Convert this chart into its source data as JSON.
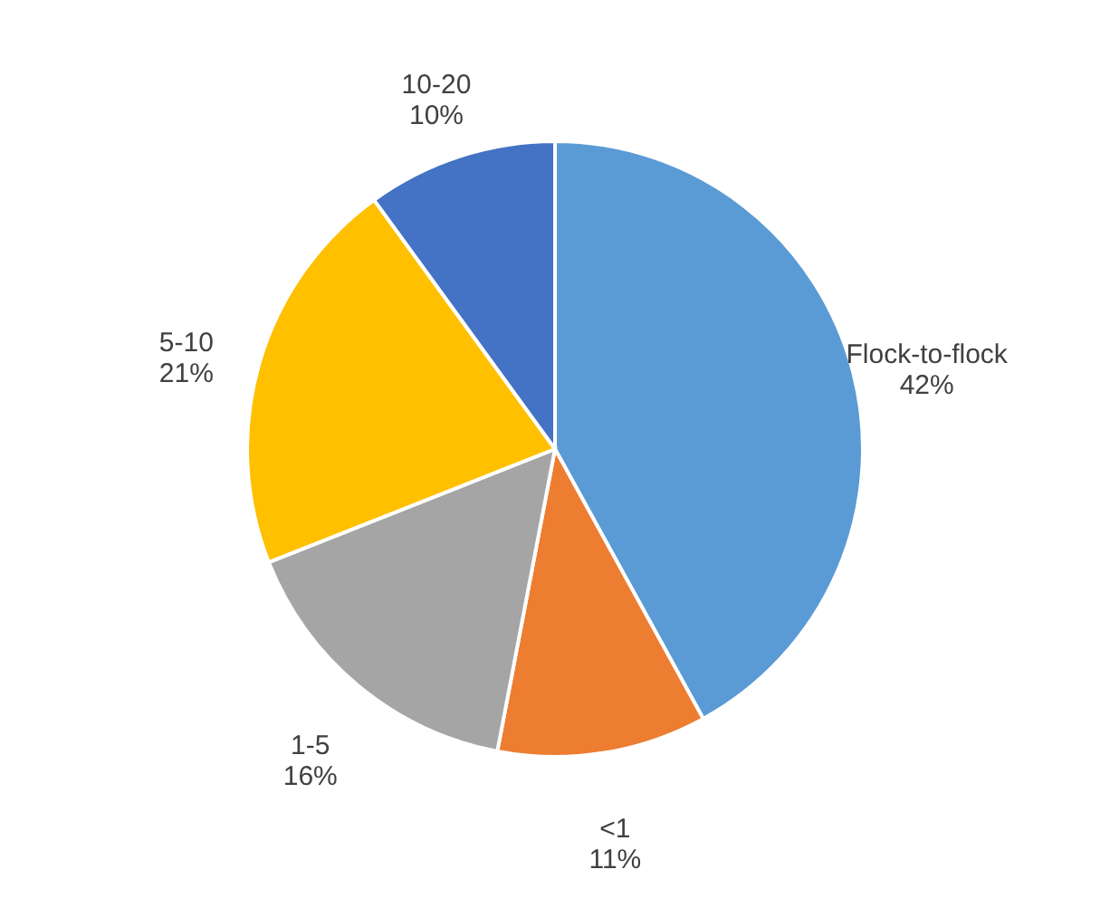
{
  "chart_data": {
    "type": "pie",
    "categories": [
      "Flock-to-flock",
      "<1",
      "1-5",
      "5-10",
      "10-20"
    ],
    "values": [
      42,
      11,
      16,
      21,
      10
    ],
    "value_labels": [
      "42%",
      "11%",
      "16%",
      "21%",
      "10%"
    ],
    "colors": [
      "#5b9bd5",
      "#ed7d31",
      "#a5a5a5",
      "#ffc000",
      "#4472c4"
    ]
  }
}
